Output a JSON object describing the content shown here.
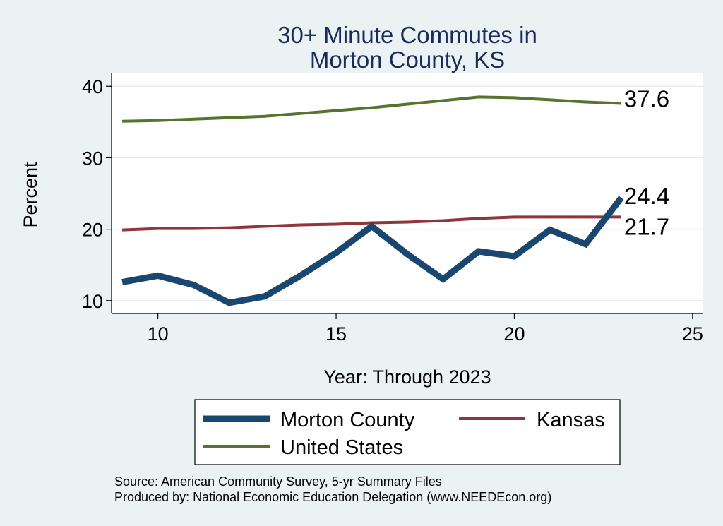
{
  "chart_data": {
    "type": "line",
    "title": [
      "30+ Minute Commutes in",
      "Morton County, KS"
    ],
    "xlabel": "Year: Through 2023",
    "ylabel": "Percent",
    "xlim": [
      8.7,
      25.3
    ],
    "ylim": [
      8.2,
      41.8
    ],
    "x_ticks": [
      10,
      15,
      20,
      25
    ],
    "y_ticks": [
      10,
      20,
      30,
      40
    ],
    "grid": true,
    "series": [
      {
        "name": "Morton County",
        "color": "#1a476f",
        "width": 9,
        "x": [
          9,
          10,
          11,
          12,
          13,
          14,
          15,
          16,
          17,
          18,
          19,
          20,
          21,
          22,
          23
        ],
        "values": [
          12.6,
          13.5,
          12.2,
          9.7,
          10.6,
          13.5,
          16.7,
          20.4,
          16.5,
          13.0,
          16.9,
          16.2,
          19.9,
          17.9,
          24.4
        ],
        "end_label": "24.4"
      },
      {
        "name": "Kansas",
        "color": "#90353b",
        "width": 4,
        "x": [
          9,
          10,
          11,
          12,
          13,
          14,
          15,
          16,
          17,
          18,
          19,
          20,
          21,
          22,
          23
        ],
        "values": [
          19.9,
          20.1,
          20.1,
          20.2,
          20.4,
          20.6,
          20.7,
          20.9,
          21.0,
          21.2,
          21.5,
          21.7,
          21.7,
          21.7,
          21.7
        ],
        "end_label": "21.7"
      },
      {
        "name": "United States",
        "color": "#55752f",
        "width": 4,
        "x": [
          9,
          10,
          11,
          12,
          13,
          14,
          15,
          16,
          17,
          18,
          19,
          20,
          21,
          22,
          23
        ],
        "values": [
          35.1,
          35.2,
          35.4,
          35.6,
          35.8,
          36.2,
          36.6,
          37.0,
          37.5,
          38.0,
          38.5,
          38.4,
          38.1,
          37.8,
          37.6
        ],
        "end_label": "37.6"
      }
    ],
    "legend": {
      "position": "bottom",
      "items": [
        "Morton County",
        "Kansas",
        "United States"
      ]
    }
  },
  "source_note": "Source: American Community Survey, 5-yr Summary Files",
  "producer_note": "Produced by: National Economic Education Delegation (www.NEEDEcon.org)"
}
